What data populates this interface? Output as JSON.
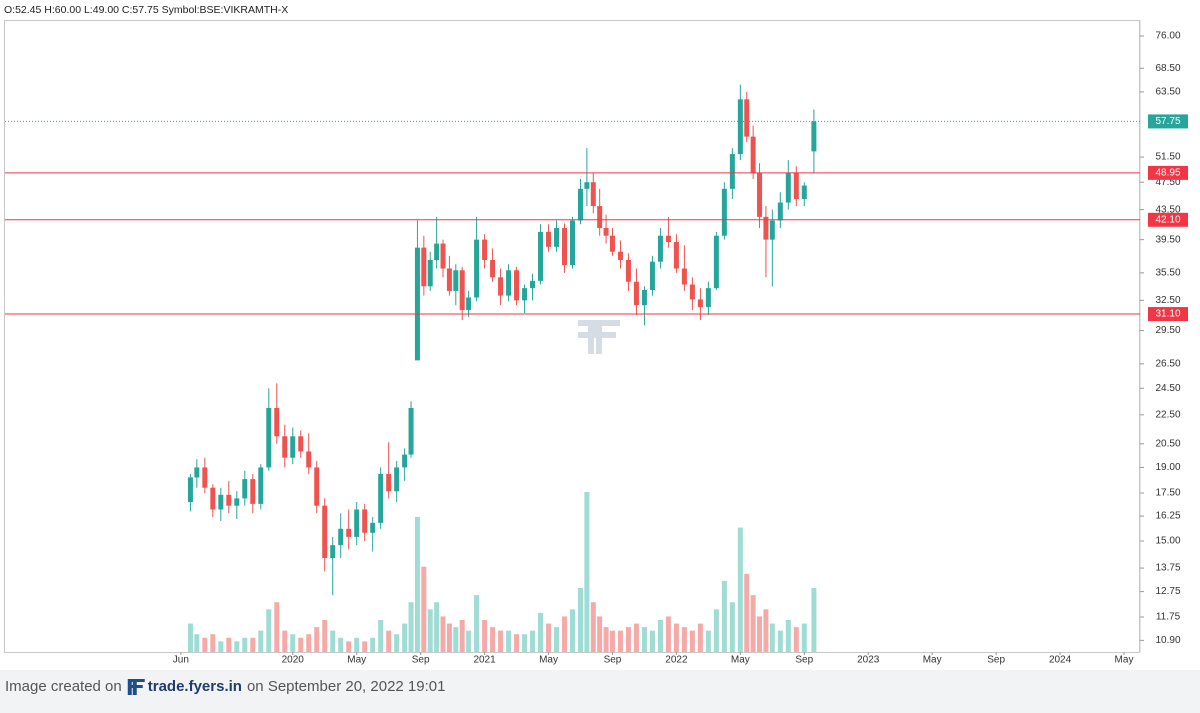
{
  "header": {
    "text": "O:52.45 H:60.00 L:49.00 C:57.75 Symbol:BSE:VIKRAMTH-X"
  },
  "chart_data": {
    "type": "candlestick",
    "log_scale": true,
    "up_color": "#26a69a",
    "down_color": "#ef5350",
    "volume_up_color": "#9fdcd4",
    "volume_down_color": "#f6aaa8",
    "xlim": [
      -6,
      65
    ],
    "xticks": [
      {
        "value": 5,
        "label": "Jun"
      },
      {
        "value": 12,
        "label": "2020"
      },
      {
        "value": 16,
        "label": "May"
      },
      {
        "value": 20,
        "label": "Sep"
      },
      {
        "value": 24,
        "label": "2021"
      },
      {
        "value": 28,
        "label": "May"
      },
      {
        "value": 32,
        "label": "Sep"
      },
      {
        "value": 36,
        "label": "2022"
      },
      {
        "value": 40,
        "label": "May"
      },
      {
        "value": 44,
        "label": "Sep"
      },
      {
        "value": 48,
        "label": "2023"
      },
      {
        "value": 52,
        "label": "May"
      },
      {
        "value": 56,
        "label": "Sep"
      },
      {
        "value": 60,
        "label": "2024"
      },
      {
        "value": 64,
        "label": "May"
      }
    ],
    "ylim": [
      10.5,
      80
    ],
    "yticks": [
      {
        "value": 76,
        "label": "76.00"
      },
      {
        "value": 68.5,
        "label": "68.50"
      },
      {
        "value": 63.5,
        "label": "63.50"
      },
      {
        "value": 51.5,
        "label": "51.50"
      },
      {
        "value": 47.5,
        "label": "47.50"
      },
      {
        "value": 43.5,
        "label": "43.50"
      },
      {
        "value": 39.5,
        "label": "39.50"
      },
      {
        "value": 35.5,
        "label": "35.50"
      },
      {
        "value": 32.5,
        "label": "32.50"
      },
      {
        "value": 29.5,
        "label": "29.50"
      },
      {
        "value": 26.5,
        "label": "26.50"
      },
      {
        "value": 24.5,
        "label": "24.50"
      },
      {
        "value": 22.5,
        "label": "22.50"
      },
      {
        "value": 20.5,
        "label": "20.50"
      },
      {
        "value": 19,
        "label": "19.00"
      },
      {
        "value": 17.5,
        "label": "17.50"
      },
      {
        "value": 16.25,
        "label": "16.25"
      },
      {
        "value": 15,
        "label": "15.00"
      },
      {
        "value": 13.75,
        "label": "13.75"
      },
      {
        "value": 12.75,
        "label": "12.75"
      },
      {
        "value": 11.75,
        "label": "11.75"
      },
      {
        "value": 10.9,
        "label": "10.90"
      }
    ],
    "levels": [
      {
        "value": 48.95,
        "color": "#f23645"
      },
      {
        "value": {
          "value": 42.1,
          "label": "42.10"
        },
        "color": "#f23645"
      },
      {
        "value": {
          "value": 31.1,
          "label": "31.10"
        },
        "color": "#f23645"
      }
    ],
    "last_price": {
      "value": 57.75,
      "color": "#26a69a"
    },
    "x": [
      5.6,
      6.0,
      6.5,
      7.0,
      7.5,
      8.0,
      8.5,
      9.0,
      9.5,
      10.0,
      10.5,
      11.0,
      11.5,
      12.0,
      12.5,
      13.0,
      13.5,
      14.0,
      14.5,
      15.0,
      15.5,
      16.0,
      16.5,
      17.0,
      17.5,
      18.0,
      18.5,
      19.0,
      19.4,
      19.8,
      20.2,
      20.6,
      21.0,
      21.4,
      21.8,
      22.2,
      22.6,
      23.0,
      23.5,
      24.0,
      24.5,
      25.0,
      25.5,
      26.0,
      26.5,
      27.0,
      27.5,
      28.0,
      28.5,
      29.0,
      29.5,
      30.0,
      30.4,
      30.8,
      31.2,
      31.6,
      32.0,
      32.5,
      33.0,
      33.5,
      34.0,
      34.5,
      35.0,
      35.5,
      36.0,
      36.5,
      37.0,
      37.5,
      38.0,
      38.5,
      39.0,
      39.5,
      40.0,
      40.4,
      40.8,
      41.2,
      41.6,
      42.0,
      42.5,
      43.0,
      43.5,
      44.0,
      44.6
    ],
    "open": [
      17.0,
      18.4,
      19.0,
      17.8,
      16.6,
      17.4,
      16.8,
      17.2,
      18.3,
      16.9,
      19.0,
      23.0,
      21.0,
      19.6,
      21.0,
      20.0,
      19.0,
      16.8,
      14.2,
      14.8,
      15.6,
      15.2,
      16.6,
      15.4,
      15.9,
      18.6,
      17.6,
      19.0,
      19.8,
      26.8,
      38.5,
      34.0,
      37.0,
      39.0,
      36.0,
      33.5,
      35.8,
      31.5,
      32.8,
      39.5,
      37.0,
      35.0,
      33.0,
      35.8,
      32.5,
      33.8,
      34.6,
      40.5,
      38.6,
      41.0,
      36.4,
      42.0,
      46.5,
      47.5,
      44.0,
      41.0,
      40.0,
      38.0,
      37.0,
      34.5,
      32.0,
      33.6,
      36.8,
      40.0,
      39.2,
      36.0,
      34.2,
      32.6,
      31.8,
      33.8,
      40.0,
      46.5,
      52.0,
      62.0,
      55.0,
      49.0,
      42.5,
      39.5,
      42.0,
      44.5,
      49.0,
      45.0,
      52.45
    ],
    "high": [
      18.6,
      19.5,
      19.6,
      18.0,
      17.8,
      18.2,
      17.6,
      18.8,
      18.6,
      19.2,
      24.5,
      24.9,
      21.8,
      21.6,
      21.4,
      21.2,
      19.4,
      17.2,
      15.2,
      16.4,
      16.6,
      17.0,
      16.9,
      16.2,
      19.0,
      20.6,
      19.4,
      20.2,
      23.5,
      42.0,
      40.0,
      38.0,
      42.5,
      39.5,
      37.5,
      36.5,
      36.2,
      33.5,
      42.5,
      40.2,
      38.4,
      36.0,
      36.5,
      36.2,
      34.2,
      35.4,
      41.5,
      41.5,
      42.0,
      41.6,
      42.5,
      48.0,
      53.0,
      49.0,
      46.5,
      42.8,
      41.0,
      39.4,
      37.8,
      36.0,
      34.0,
      37.5,
      41.0,
      42.5,
      40.2,
      38.8,
      35.0,
      33.8,
      34.5,
      40.5,
      47.5,
      53.0,
      65.0,
      63.5,
      57.0,
      50.5,
      44.0,
      43.5,
      46.0,
      51.0,
      50.0,
      47.5,
      60.0
    ],
    "low": [
      16.5,
      17.8,
      17.5,
      16.2,
      16.0,
      16.4,
      16.1,
      16.8,
      16.4,
      16.6,
      18.8,
      20.5,
      19.0,
      19.2,
      19.6,
      18.6,
      16.4,
      13.6,
      12.6,
      14.2,
      14.6,
      14.8,
      15.0,
      14.5,
      15.6,
      17.2,
      17.0,
      18.2,
      19.6,
      26.8,
      33.0,
      33.5,
      36.0,
      35.0,
      33.0,
      32.0,
      30.5,
      30.8,
      32.4,
      36.0,
      34.5,
      32.0,
      32.4,
      32.0,
      31.2,
      32.5,
      34.2,
      38.0,
      38.0,
      35.5,
      36.0,
      41.5,
      44.0,
      43.0,
      40.0,
      39.0,
      37.5,
      36.0,
      33.5,
      31.0,
      30.0,
      33.0,
      36.0,
      38.5,
      35.5,
      33.5,
      31.5,
      30.5,
      31.0,
      33.6,
      39.5,
      45.0,
      51.0,
      54.0,
      48.0,
      41.0,
      35.0,
      34.0,
      41.0,
      43.5,
      44.0,
      44.0,
      49.0
    ],
    "close": [
      18.4,
      19.0,
      17.8,
      16.6,
      17.4,
      16.8,
      17.2,
      18.3,
      16.9,
      19.0,
      23.0,
      21.0,
      19.6,
      21.0,
      20.0,
      19.0,
      16.8,
      14.2,
      14.8,
      15.6,
      15.2,
      16.6,
      15.4,
      15.9,
      18.6,
      17.6,
      19.0,
      19.8,
      23.0,
      38.5,
      34.0,
      37.0,
      39.0,
      36.0,
      33.5,
      35.8,
      31.5,
      32.8,
      39.5,
      37.0,
      35.0,
      33.0,
      35.8,
      32.5,
      33.8,
      34.6,
      40.5,
      38.6,
      41.0,
      36.4,
      42.0,
      46.5,
      47.5,
      44.0,
      41.0,
      40.0,
      38.0,
      37.0,
      34.5,
      32.0,
      33.6,
      36.8,
      40.0,
      39.2,
      36.0,
      34.2,
      32.6,
      31.8,
      33.8,
      40.0,
      46.5,
      52.0,
      62.0,
      55.0,
      49.0,
      42.5,
      39.5,
      42.0,
      44.5,
      49.0,
      45.0,
      47.0,
      57.75
    ],
    "volume": [
      8,
      5,
      4,
      5,
      3,
      4,
      3,
      4,
      4,
      6,
      12,
      14,
      6,
      5,
      4,
      5,
      7,
      9,
      6,
      4,
      3,
      4,
      3,
      4,
      9,
      6,
      5,
      8,
      14,
      38,
      24,
      12,
      14,
      10,
      8,
      7,
      9,
      6,
      16,
      9,
      7,
      6,
      6,
      5,
      5,
      6,
      11,
      8,
      7,
      10,
      12,
      18,
      45,
      14,
      10,
      7,
      6,
      6,
      7,
      8,
      7,
      6,
      9,
      10,
      8,
      7,
      6,
      8,
      6,
      12,
      20,
      14,
      35,
      22,
      16,
      10,
      12,
      8,
      6,
      9,
      7,
      8,
      18
    ]
  },
  "footer": {
    "prefix": "Image created on",
    "brand": "trade.fyers.in",
    "suffix": "on September 20, 2022 19:01"
  }
}
